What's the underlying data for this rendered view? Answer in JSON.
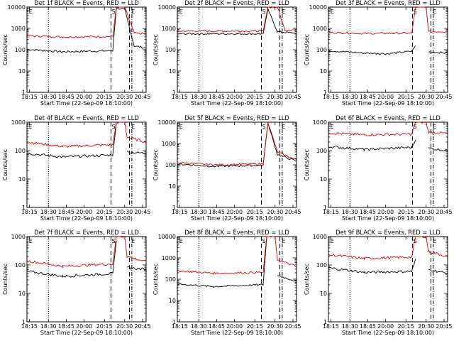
{
  "chart_data": [
    {
      "type": "line",
      "title": "Det 1f BLACK = Events, RED = LLD",
      "ylabel": "Counts/sec",
      "xlabel": "Start Time (22-Sep-09 18:10:00)",
      "ylim": [
        1,
        10000
      ],
      "yticks": [
        "1",
        "10",
        "100",
        "1000",
        "10000"
      ],
      "xticks": [
        "18:15",
        "18:30",
        "18:45",
        "20:00",
        "20:15",
        "20:30",
        "20:45"
      ],
      "markers": [
        "E",
        "S",
        "E"
      ],
      "series": [
        {
          "name": "Events",
          "color": "#000000",
          "segments": [
            [
              0,
              105
            ],
            [
              0.1,
              95
            ],
            [
              0.3,
              80
            ],
            [
              0.5,
              85
            ],
            [
              0.72,
              90
            ],
            [
              0.75,
              9000
            ],
            [
              0.82,
              8000
            ],
            [
              0.9,
              150
            ],
            [
              1,
              120
            ]
          ]
        },
        {
          "name": "LLD",
          "color": "#dd0000",
          "segments": [
            [
              0,
              450
            ],
            [
              0.3,
              400
            ],
            [
              0.72,
              420
            ],
            [
              0.75,
              10000
            ],
            [
              0.82,
              10000
            ],
            [
              0.9,
              600
            ],
            [
              1,
              550
            ]
          ]
        }
      ]
    },
    {
      "type": "line",
      "title": "Det 2f BLACK = Events, RED = LLD",
      "ylabel": "Counts/sec",
      "xlabel": "Start Time (22-Sep-09 18:10:00)",
      "ylim": [
        1,
        10000
      ],
      "yticks": [
        "1",
        "10",
        "100",
        "1000",
        "10000"
      ],
      "xticks": [
        "18:15",
        "18:30",
        "18:45",
        "20:00",
        "20:15",
        "20:30",
        "20:45"
      ],
      "markers": [
        "E",
        "S",
        "E"
      ],
      "series": [
        {
          "name": "Events",
          "color": "#000000",
          "segments": [
            [
              0,
              560
            ],
            [
              0.5,
              560
            ],
            [
              0.72,
              560
            ],
            [
              0.76,
              8000
            ],
            [
              0.84,
              700
            ],
            [
              1,
              600
            ]
          ]
        },
        {
          "name": "LLD",
          "color": "#dd0000",
          "segments": [
            [
              0,
              750
            ],
            [
              0.72,
              760
            ],
            [
              0.76,
              10000
            ],
            [
              0.84,
              10000
            ],
            [
              0.9,
              900
            ],
            [
              1,
              850
            ]
          ]
        }
      ]
    },
    {
      "type": "line",
      "title": "Det 3f BLACK = Events, RED = LLD",
      "ylabel": "Counts/sec",
      "xlabel": "Start Time (22-Sep-09 18:10:00)",
      "ylim": [
        1,
        10000
      ],
      "yticks": [
        "1",
        "10",
        "100",
        "1000",
        "10000"
      ],
      "xticks": [
        "18:15",
        "18:30",
        "18:45",
        "20:00",
        "20:15",
        "20:30",
        "20:45"
      ],
      "markers": [
        "E",
        "S",
        "E"
      ],
      "series": [
        {
          "name": "Events",
          "color": "#000000",
          "segments": [
            [
              0,
              90
            ],
            [
              0.3,
              70
            ],
            [
              0.5,
              65
            ],
            [
              0.7,
              85
            ],
            [
              0.73,
              150
            ],
            [
              0.82,
              null
            ],
            [
              0.84,
              80
            ],
            [
              1,
              70
            ]
          ]
        },
        {
          "name": "LLD",
          "color": "#dd0000",
          "segments": [
            [
              0,
              650
            ],
            [
              0.3,
              580
            ],
            [
              0.7,
              600
            ],
            [
              0.73,
              10000
            ],
            [
              0.82,
              10000
            ],
            [
              0.84,
              700
            ],
            [
              1,
              720
            ]
          ]
        }
      ]
    },
    {
      "type": "line",
      "title": "Det 4f BLACK = Events, RED = LLD",
      "ylabel": "Counts/sec",
      "xlabel": "Start Time (22-Sep-09 18:10:00)",
      "ylim": [
        1,
        1000
      ],
      "yticks": [
        "1",
        "10",
        "100",
        "1000"
      ],
      "xticks": [
        "18:15",
        "18:30",
        "18:45",
        "20:00",
        "20:15",
        "20:30",
        "20:45"
      ],
      "markers": [
        "E",
        "S",
        "E"
      ],
      "series": [
        {
          "name": "Events",
          "color": "#000000",
          "segments": [
            [
              0,
              80
            ],
            [
              0.3,
              60
            ],
            [
              0.72,
              70
            ],
            [
              0.75,
              900
            ],
            [
              0.82,
              null
            ],
            [
              0.84,
              90
            ],
            [
              1,
              80
            ]
          ]
        },
        {
          "name": "LLD",
          "color": "#dd0000",
          "segments": [
            [
              0,
              200
            ],
            [
              0.3,
              140
            ],
            [
              0.72,
              160
            ],
            [
              0.75,
              1000
            ],
            [
              0.82,
              1000
            ],
            [
              0.84,
              300
            ],
            [
              1,
              200
            ]
          ]
        }
      ]
    },
    {
      "type": "line",
      "title": "Det 5f BLACK = Events, RED = LLD",
      "ylabel": "Counts/sec",
      "xlabel": "Start Time (22-Sep-09 18:10:00)",
      "ylim": [
        1,
        10000
      ],
      "yticks": [
        "1",
        "10",
        "100",
        "1000",
        "10000"
      ],
      "xticks": [
        "18:15",
        "18:30",
        "18:45",
        "20:00",
        "20:15",
        "20:30",
        "20:45"
      ],
      "markers": [
        "E",
        "S",
        "E"
      ],
      "series": [
        {
          "name": "Events",
          "color": "#000000",
          "segments": [
            [
              0,
              110
            ],
            [
              0.3,
              85
            ],
            [
              0.72,
              95
            ],
            [
              0.76,
              9000
            ],
            [
              0.84,
              300
            ],
            [
              1,
              150
            ]
          ]
        },
        {
          "name": "LLD",
          "color": "#dd0000",
          "segments": [
            [
              0,
              130
            ],
            [
              0.3,
              100
            ],
            [
              0.72,
              110
            ],
            [
              0.76,
              10000
            ],
            [
              0.84,
              400
            ],
            [
              1,
              170
            ]
          ]
        }
      ]
    },
    {
      "type": "line",
      "title": "Det 6f BLACK = Events, RED = LLD",
      "ylabel": "Counts/sec",
      "xlabel": "Start Time (22-Sep-09 18:10:00)",
      "ylim": [
        1,
        1000
      ],
      "yticks": [
        "1",
        "10",
        "100",
        "1000"
      ],
      "xticks": [
        "18:15",
        "18:30",
        "18:45",
        "20:00",
        "20:15",
        "20:30",
        "20:45"
      ],
      "markers": [
        "E",
        "S",
        "E"
      ],
      "series": [
        {
          "name": "Events",
          "color": "#000000",
          "segments": [
            [
              0,
              140
            ],
            [
              0.3,
              110
            ],
            [
              0.7,
              130
            ],
            [
              0.73,
              250
            ],
            [
              0.82,
              null
            ],
            [
              0.84,
              120
            ],
            [
              1,
              100
            ]
          ]
        },
        {
          "name": "LLD",
          "color": "#dd0000",
          "segments": [
            [
              0,
              420
            ],
            [
              0.3,
              360
            ],
            [
              0.7,
              380
            ],
            [
              0.73,
              1000
            ],
            [
              0.82,
              1000
            ],
            [
              0.84,
              450
            ],
            [
              1,
              400
            ]
          ]
        }
      ]
    },
    {
      "type": "line",
      "title": "Det 7f BLACK = Events, RED = LLD",
      "ylabel": "Counts/sec",
      "xlabel": "Start Time (22-Sep-09 18:10:00)",
      "ylim": [
        1,
        1000
      ],
      "yticks": [
        "1",
        "10",
        "100",
        "1000"
      ],
      "xticks": [
        "18:15",
        "18:30",
        "18:45",
        "20:00",
        "20:15",
        "20:30",
        "20:45"
      ],
      "markers": [
        "E",
        "S",
        "E"
      ],
      "series": [
        {
          "name": "Events",
          "color": "#000000",
          "segments": [
            [
              0,
              60
            ],
            [
              0.3,
              40
            ],
            [
              0.72,
              50
            ],
            [
              0.75,
              700
            ],
            [
              0.82,
              null
            ],
            [
              0.84,
              80
            ],
            [
              1,
              70
            ]
          ]
        },
        {
          "name": "LLD",
          "color": "#dd0000",
          "segments": [
            [
              0,
              140
            ],
            [
              0.3,
              90
            ],
            [
              0.72,
              110
            ],
            [
              0.75,
              1000
            ],
            [
              0.82,
              1000
            ],
            [
              0.84,
              200
            ],
            [
              1,
              130
            ]
          ]
        }
      ]
    },
    {
      "type": "line",
      "title": "Det 8f BLACK = Events, RED = LLD",
      "ylabel": "Counts/sec",
      "xlabel": "Start Time (22-Sep-09 18:10:00)",
      "ylim": [
        1,
        10000
      ],
      "yticks": [
        "1",
        "10",
        "100",
        "1000",
        "10000"
      ],
      "xticks": [
        "18:15",
        "18:30",
        "18:45",
        "20:00",
        "20:15",
        "20:30",
        "20:45"
      ],
      "markers": [
        "E",
        "S",
        "E"
      ],
      "series": [
        {
          "name": "Events",
          "color": "#000000",
          "segments": [
            [
              0,
              60
            ],
            [
              0.3,
              45
            ],
            [
              0.72,
              55
            ],
            [
              0.75,
              9000
            ],
            [
              0.82,
              null
            ],
            [
              0.84,
              150
            ],
            [
              1,
              80
            ]
          ]
        },
        {
          "name": "LLD",
          "color": "#dd0000",
          "segments": [
            [
              0,
              250
            ],
            [
              0.3,
              190
            ],
            [
              0.72,
              210
            ],
            [
              0.75,
              10000
            ],
            [
              0.82,
              10000
            ],
            [
              0.84,
              800
            ],
            [
              1,
              400
            ]
          ]
        }
      ]
    },
    {
      "type": "line",
      "title": "Det 9f BLACK = Events, RED = LLD",
      "ylabel": "Counts/sec",
      "xlabel": "Start Time (22-Sep-09 18:10:00)",
      "ylim": [
        1,
        1000
      ],
      "yticks": [
        "1",
        "10",
        "100",
        "1000"
      ],
      "xticks": [
        "18:15",
        "18:30",
        "18:45",
        "20:00",
        "20:15",
        "20:30",
        "20:45"
      ],
      "markers": [
        "E",
        "S",
        "E"
      ],
      "series": [
        {
          "name": "Events",
          "color": "#000000",
          "segments": [
            [
              0,
              80
            ],
            [
              0.3,
              55
            ],
            [
              0.7,
              60
            ],
            [
              0.73,
              150
            ],
            [
              0.82,
              null
            ],
            [
              0.84,
              70
            ],
            [
              1,
              50
            ]
          ]
        },
        {
          "name": "LLD",
          "color": "#dd0000",
          "segments": [
            [
              0,
              230
            ],
            [
              0.3,
              170
            ],
            [
              0.7,
              190
            ],
            [
              0.73,
              1000
            ],
            [
              0.82,
              1000
            ],
            [
              0.84,
              300
            ],
            [
              1,
              200
            ]
          ]
        }
      ]
    }
  ]
}
